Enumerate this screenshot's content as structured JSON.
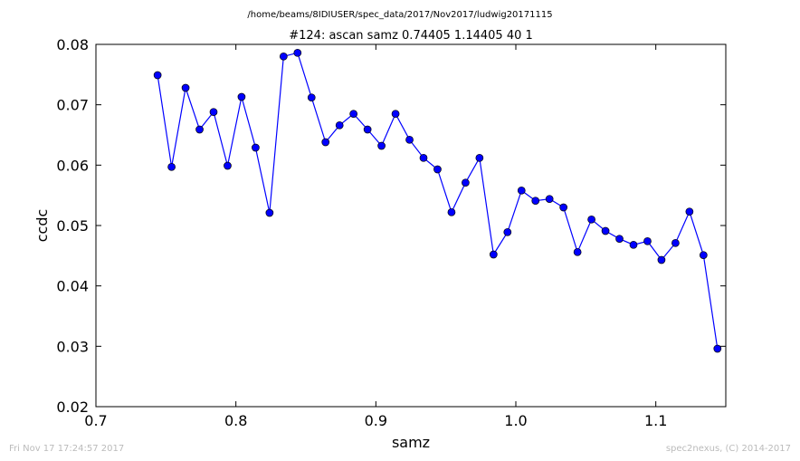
{
  "header": {
    "path": "/home/beams/8IDIUSER/spec_data/2017/Nov2017/ludwig20171115",
    "scan_title": "#124: ascan  samz 0.74405 1.14405  40 1"
  },
  "footer": {
    "timestamp": "Fri Nov 17 17:24:57 2017",
    "credit": "spec2nexus, (C) 2014-2017"
  },
  "colors": {
    "series": "#0000ff",
    "footer_text": "#bbbbbb"
  },
  "chart_data": {
    "type": "line",
    "title": "#124: ascan  samz 0.74405 1.14405  40 1",
    "xlabel": "samz",
    "ylabel": "ccdc",
    "xlim": [
      0.7,
      1.15
    ],
    "ylim": [
      0.02,
      0.08
    ],
    "xticks": [
      "0.7",
      "0.8",
      "0.9",
      "1.0",
      "1.1"
    ],
    "yticks": [
      "0.02",
      "0.03",
      "0.04",
      "0.05",
      "0.06",
      "0.07",
      "0.08"
    ],
    "grid": false,
    "marker": "circle",
    "series": [
      {
        "x": [
          0.74405,
          0.75405,
          0.76405,
          0.77405,
          0.78405,
          0.79405,
          0.80405,
          0.81405,
          0.82405,
          0.83405,
          0.84405,
          0.85405,
          0.86405,
          0.87405,
          0.88405,
          0.89405,
          0.90405,
          0.91405,
          0.92405,
          0.93405,
          0.94405,
          0.95405,
          0.96405,
          0.97405,
          0.98405,
          0.99405,
          1.00405,
          1.01405,
          1.02405,
          1.03405,
          1.04405,
          1.05405,
          1.06405,
          1.07405,
          1.08405,
          1.09405,
          1.10405,
          1.11405,
          1.12405,
          1.13405,
          1.14405
        ],
        "values": [
          0.0749,
          0.0597,
          0.0728,
          0.0659,
          0.0688,
          0.0599,
          0.0713,
          0.0629,
          0.0521,
          0.078,
          0.0786,
          0.0712,
          0.0638,
          0.0666,
          0.0685,
          0.0659,
          0.0632,
          0.0685,
          0.0642,
          0.0612,
          0.0593,
          0.0522,
          0.0571,
          0.0612,
          0.0452,
          0.0489,
          0.0558,
          0.0541,
          0.0544,
          0.053,
          0.0456,
          0.051,
          0.0491,
          0.0478,
          0.0468,
          0.0474,
          0.0443,
          0.0471,
          0.0523,
          0.0451,
          0.0296
        ]
      }
    ]
  }
}
